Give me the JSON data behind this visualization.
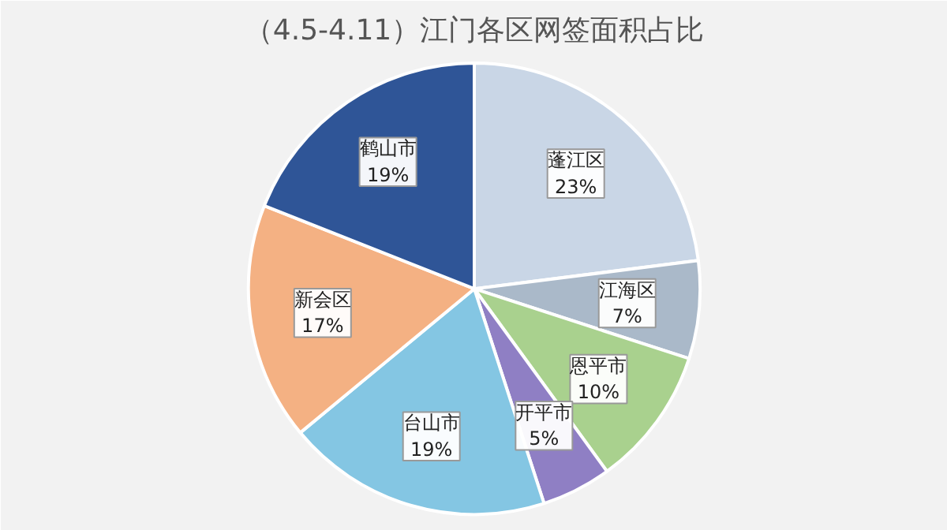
{
  "chart_data": {
    "type": "pie",
    "title": "（4.5-4.11）江门各区网签面积占比",
    "categories": [
      "蓬江区",
      "江海区",
      "恩平市",
      "开平市",
      "台山市",
      "新会区",
      "鹤山市"
    ],
    "values": [
      23,
      7,
      10,
      5,
      19,
      17,
      19
    ],
    "value_labels": [
      "23%",
      "7%",
      "10%",
      "5%",
      "19%",
      "17%",
      "19%"
    ],
    "colors": [
      "#c9d6e6",
      "#aab9c9",
      "#a9d18e",
      "#8f7fc4",
      "#84c6e3",
      "#f4b183",
      "#2f5597"
    ]
  }
}
